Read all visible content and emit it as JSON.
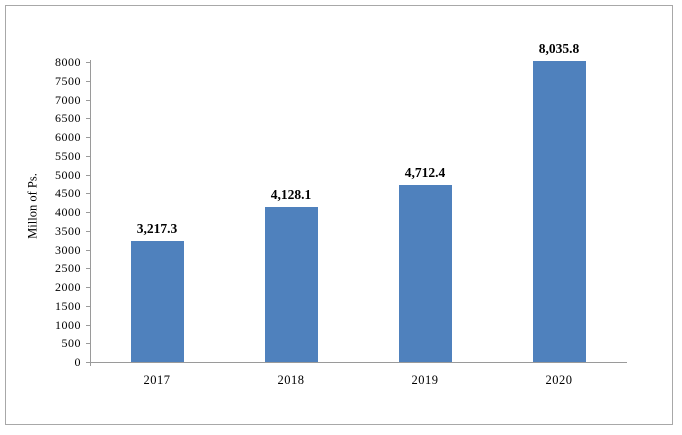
{
  "chart_data": {
    "type": "bar",
    "title": "",
    "xlabel": "",
    "ylabel": "Millon of Ps.",
    "categories": [
      "2017",
      "2018",
      "2019",
      "2020"
    ],
    "values": [
      3217.3,
      4128.1,
      4712.4,
      8035.8
    ],
    "data_labels": [
      "3,217.3",
      "4,128.1",
      "4,712.4",
      "8,035.8"
    ],
    "ylim": [
      0,
      8000
    ],
    "ytick_step": 500,
    "ytick_labels": [
      "0",
      "500",
      "1000",
      "1500",
      "2000",
      "2500",
      "3000",
      "3500",
      "4000",
      "4500",
      "5000",
      "5500",
      "6000",
      "6500",
      "7000",
      "7500",
      "8000"
    ],
    "grid": false,
    "legend": "none",
    "colors": {
      "bar_fill": "#4f81bd",
      "axis_line": "#9a9a9a",
      "text": "#000000",
      "frame_border": "#a8a8a8",
      "background": "#ffffff"
    }
  }
}
